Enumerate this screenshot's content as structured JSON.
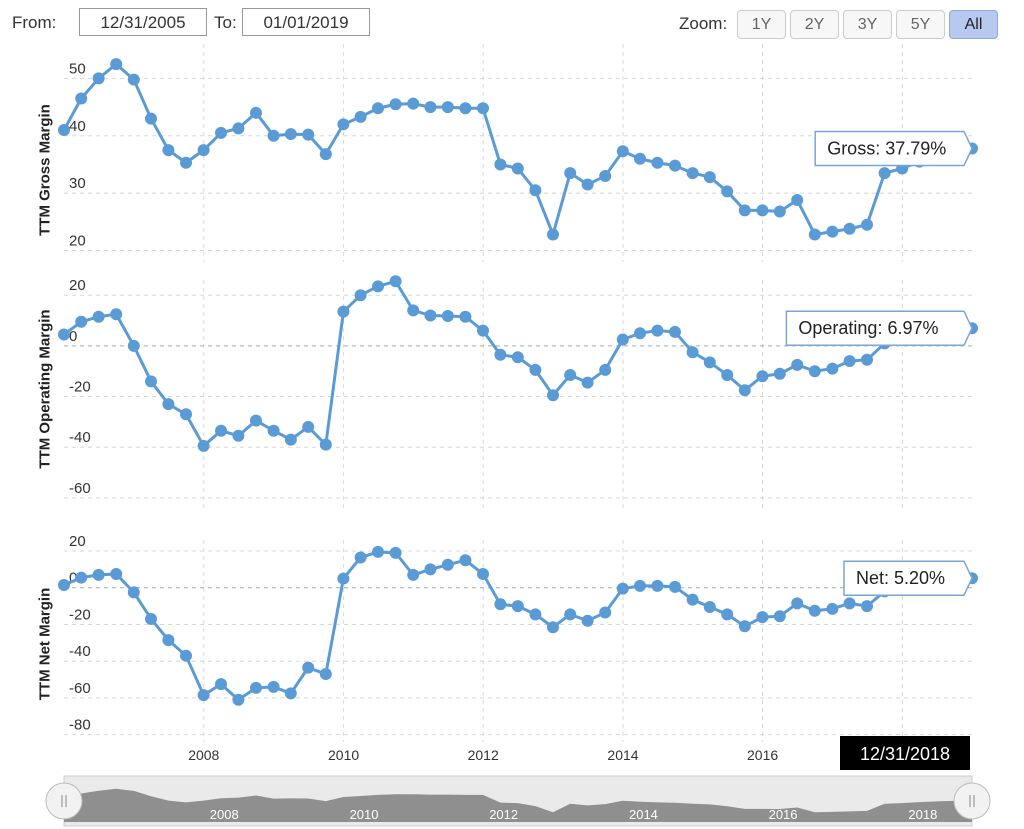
{
  "toolbar": {
    "from_label": "From:",
    "from_value": "12/31/2005",
    "to_label": "To:",
    "to_value": "01/01/2019",
    "zoom_label": "Zoom:",
    "zoom_options": [
      "1Y",
      "2Y",
      "3Y",
      "5Y",
      "All"
    ],
    "zoom_active": "All"
  },
  "crosshair_date": "12/31/2018",
  "colors": {
    "series": "#5b9bd5",
    "grid": "#d8d8d8",
    "navigator_fill": "#7f7f7f"
  },
  "chart_data": [
    {
      "type": "line",
      "ylabel": "TTM Gross Margin",
      "y_ticks": [
        20,
        30,
        40,
        50
      ],
      "ylim": [
        18,
        56
      ],
      "badge": "Gross: 37.79%",
      "x": [
        "2005-12-31",
        "2006-03-31",
        "2006-06-30",
        "2006-09-30",
        "2006-12-31",
        "2007-03-31",
        "2007-06-30",
        "2007-09-30",
        "2007-12-31",
        "2008-03-31",
        "2008-06-30",
        "2008-09-30",
        "2008-12-31",
        "2009-03-31",
        "2009-06-30",
        "2009-09-30",
        "2009-12-31",
        "2010-03-31",
        "2010-06-30",
        "2010-09-30",
        "2010-12-31",
        "2011-03-31",
        "2011-06-30",
        "2011-09-30",
        "2011-12-31",
        "2012-03-31",
        "2012-06-30",
        "2012-09-30",
        "2012-12-31",
        "2013-03-31",
        "2013-06-30",
        "2013-09-30",
        "2013-12-31",
        "2014-03-31",
        "2014-06-30",
        "2014-09-30",
        "2014-12-31",
        "2015-03-31",
        "2015-06-30",
        "2015-09-30",
        "2015-12-31",
        "2016-03-31",
        "2016-06-30",
        "2016-09-30",
        "2016-12-31",
        "2017-03-31",
        "2017-06-30",
        "2017-09-30",
        "2017-12-31",
        "2018-03-31",
        "2018-06-30",
        "2018-09-30",
        "2018-12-31"
      ],
      "values": [
        41,
        46.5,
        50,
        52.5,
        49.8,
        43,
        37.5,
        35.3,
        37.5,
        40.5,
        41.3,
        44,
        40,
        40.3,
        40.2,
        36.8,
        42,
        43.3,
        44.8,
        45.5,
        45.6,
        45,
        45,
        44.8,
        44.8,
        35,
        34.3,
        30.5,
        22.8,
        33.5,
        31.5,
        33,
        37.3,
        36,
        35.3,
        34.8,
        33.5,
        32.8,
        30.3,
        27,
        27,
        26.8,
        28.8,
        22.8,
        23.3,
        23.8,
        24.5,
        33.5,
        34.3,
        35.5,
        36.5,
        37.2,
        37.79
      ]
    },
    {
      "type": "line",
      "ylabel": "TTM Operating Margin",
      "y_ticks": [
        20,
        0,
        -20,
        -40,
        -60
      ],
      "ylim": [
        -64,
        26
      ],
      "badge": "Operating: 6.97%",
      "x": [
        "2005-12-31",
        "2006-03-31",
        "2006-06-30",
        "2006-09-30",
        "2006-12-31",
        "2007-03-31",
        "2007-06-30",
        "2007-09-30",
        "2007-12-31",
        "2008-03-31",
        "2008-06-30",
        "2008-09-30",
        "2008-12-31",
        "2009-03-31",
        "2009-06-30",
        "2009-09-30",
        "2009-12-31",
        "2010-03-31",
        "2010-06-30",
        "2010-09-30",
        "2010-12-31",
        "2011-03-31",
        "2011-06-30",
        "2011-09-30",
        "2011-12-31",
        "2012-03-31",
        "2012-06-30",
        "2012-09-30",
        "2012-12-31",
        "2013-03-31",
        "2013-06-30",
        "2013-09-30",
        "2013-12-31",
        "2014-03-31",
        "2014-06-30",
        "2014-09-30",
        "2014-12-31",
        "2015-03-31",
        "2015-06-30",
        "2015-09-30",
        "2015-12-31",
        "2016-03-31",
        "2016-06-30",
        "2016-09-30",
        "2016-12-31",
        "2017-03-31",
        "2017-06-30",
        "2017-09-30",
        "2017-12-31",
        "2018-03-31",
        "2018-06-30",
        "2018-09-30",
        "2018-12-31"
      ],
      "values": [
        4.5,
        9.5,
        11.5,
        12.5,
        0,
        -14,
        -23,
        -27,
        -39.5,
        -33.5,
        -35.5,
        -29.5,
        -33.5,
        -37,
        -32,
        -39,
        13.5,
        20,
        23.5,
        25.5,
        14,
        12,
        11.8,
        11.5,
        6,
        -3.5,
        -4.5,
        -9.5,
        -19.5,
        -11.5,
        -14.5,
        -9.5,
        2.5,
        5,
        6,
        5.5,
        -2.5,
        -6.5,
        -11.5,
        -17.5,
        -12,
        -11,
        -7.5,
        -10,
        -9,
        -6,
        -5.5,
        1,
        4,
        5.5,
        6.5,
        6.7,
        6.97
      ]
    },
    {
      "type": "line",
      "ylabel": "TTM Net Margin",
      "y_ticks": [
        20,
        0,
        -20,
        -40,
        -60,
        -80
      ],
      "ylim": [
        -84,
        26
      ],
      "badge": "Net: 5.20%",
      "x": [
        "2005-12-31",
        "2006-03-31",
        "2006-06-30",
        "2006-09-30",
        "2006-12-31",
        "2007-03-31",
        "2007-06-30",
        "2007-09-30",
        "2007-12-31",
        "2008-03-31",
        "2008-06-30",
        "2008-09-30",
        "2008-12-31",
        "2009-03-31",
        "2009-06-30",
        "2009-09-30",
        "2009-12-31",
        "2010-03-31",
        "2010-06-30",
        "2010-09-30",
        "2010-12-31",
        "2011-03-31",
        "2011-06-30",
        "2011-09-30",
        "2011-12-31",
        "2012-03-31",
        "2012-06-30",
        "2012-09-30",
        "2012-12-31",
        "2013-03-31",
        "2013-06-30",
        "2013-09-30",
        "2013-12-31",
        "2014-03-31",
        "2014-06-30",
        "2014-09-30",
        "2014-12-31",
        "2015-03-31",
        "2015-06-30",
        "2015-09-30",
        "2015-12-31",
        "2016-03-31",
        "2016-06-30",
        "2016-09-30",
        "2016-12-31",
        "2017-03-31",
        "2017-06-30",
        "2017-09-30",
        "2017-12-31",
        "2018-03-31",
        "2018-06-30",
        "2018-09-30",
        "2018-12-31"
      ],
      "values": [
        1.5,
        5.5,
        7,
        7.5,
        -2.5,
        -17,
        -28.5,
        -37,
        -58.5,
        -52.5,
        -61,
        -54.5,
        -54,
        -57.5,
        -43.5,
        -47,
        5,
        16.5,
        19.5,
        19,
        7,
        10,
        12.5,
        15,
        7.5,
        -9,
        -10,
        -14.5,
        -21.5,
        -14.5,
        -18,
        -13.5,
        -0.5,
        1,
        1,
        0.5,
        -6.5,
        -10.5,
        -14.5,
        -21,
        -16,
        -15.5,
        -8.5,
        -12.5,
        -11.5,
        -8.5,
        -10,
        -2,
        1.5,
        3,
        4.2,
        4.8,
        5.2
      ]
    }
  ],
  "x_axis": {
    "tick_labels": [
      "2008",
      "2010",
      "2012",
      "2014",
      "2016"
    ],
    "navigator_labels": [
      "2008",
      "2010",
      "2012",
      "2014",
      "2016",
      "2018"
    ],
    "range": [
      "2005-12-31",
      "2018-12-31"
    ]
  }
}
